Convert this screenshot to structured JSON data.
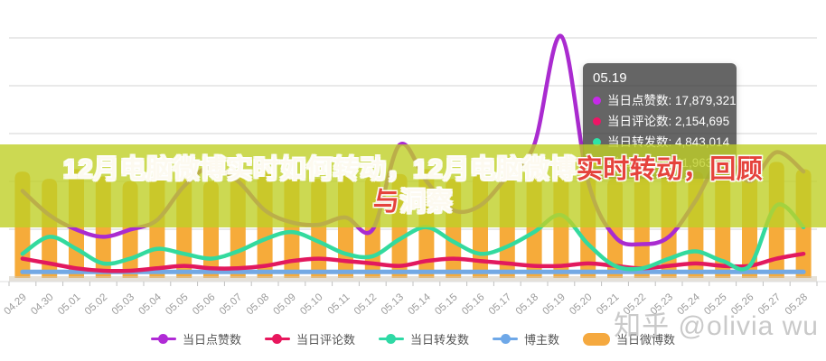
{
  "title_overlay": {
    "text": "12月电脑微博实时如何转动，12月电脑微博实时转动，回顾与洞察",
    "segments": [
      {
        "text": "12月电脑微博实时如何转动，12月电脑微博",
        "color": "#fdfaf0"
      },
      {
        "text": "实时转动，回顾与",
        "color": "#e5433c"
      },
      {
        "text": "洞察",
        "color": "#fdfaf0"
      }
    ],
    "band_color": "#bfcf27",
    "band_opacity": 0.8
  },
  "tooltip": {
    "date": "05.19",
    "rows": [
      {
        "label": "当日点赞数",
        "value": "17,879,321",
        "color": "#c62ae8"
      },
      {
        "label": "当日评论数",
        "value": "2,154,695",
        "color": "#ee1566"
      },
      {
        "label": "当日转发数",
        "value": "4,843,014",
        "color": "#2de4a7"
      },
      {
        "label": "当日微博数",
        "value": "41,963",
        "color": "#f5a93f"
      }
    ]
  },
  "legend": [
    {
      "label": "当日点赞数",
      "color": "#b02bd6",
      "type": "line"
    },
    {
      "label": "当日评论数",
      "color": "#e8175d",
      "type": "line"
    },
    {
      "label": "当日转发数",
      "color": "#2fd9a5",
      "type": "line"
    },
    {
      "label": "博主数",
      "color": "#6ea8e8",
      "type": "line"
    },
    {
      "label": "当日微博数",
      "color": "#f5a93f",
      "type": "bar"
    }
  ],
  "watermark": "知乎 @olivia wu",
  "chart_data": {
    "type": "mixed bar+line",
    "note": "No y-axis labels visible in screenshot; series values are estimated as percent of plot height (0-100). Tooltip gives real values for 05.19.",
    "categories": [
      "04.29",
      "04.30",
      "05.01",
      "05.02",
      "05.03",
      "05.04",
      "05.05",
      "05.06",
      "05.07",
      "05.08",
      "05.09",
      "05.10",
      "05.11",
      "05.12",
      "05.13",
      "05.14",
      "05.15",
      "05.16",
      "05.17",
      "05.18",
      "05.19",
      "05.20",
      "05.21",
      "05.22",
      "05.23",
      "05.24",
      "05.25",
      "05.26",
      "05.27",
      "05.28"
    ],
    "ylim": [
      0,
      100
    ],
    "grid": true,
    "legend_position": "bottom",
    "series": [
      {
        "name": "当日微博数",
        "type": "bar",
        "color": "#f6ab3a",
        "values": [
          44,
          41,
          45,
          42,
          40,
          44,
          42,
          40,
          42,
          45,
          43,
          41,
          44,
          42,
          43,
          45,
          41,
          43,
          42,
          44,
          48,
          43,
          41,
          42,
          45,
          44,
          46,
          42,
          48,
          45
        ]
      },
      {
        "name": "博主数",
        "type": "line",
        "color": "#73a9e4",
        "values": [
          2.5,
          2.5,
          2.5,
          2.5,
          2.5,
          2.5,
          2.5,
          2.5,
          2.5,
          2.5,
          2.5,
          2.5,
          2.5,
          2.5,
          2.5,
          2.5,
          2.5,
          2.5,
          2.5,
          2.5,
          2.5,
          2.5,
          2.5,
          2.5,
          2.5,
          2.5,
          2.5,
          2.5,
          2.5,
          2.5
        ]
      },
      {
        "name": "当日评论数",
        "type": "line",
        "color": "#e2195e",
        "values": [
          8,
          6,
          4,
          3,
          3,
          4,
          5,
          4,
          4,
          5,
          7,
          8,
          7,
          6,
          5,
          7,
          8,
          7,
          6,
          5,
          5,
          6,
          5,
          4,
          5,
          6,
          5,
          5,
          8,
          10
        ]
      },
      {
        "name": "当日转发数",
        "type": "line",
        "color": "#33da9e",
        "values": [
          10,
          17,
          12,
          6,
          8,
          12,
          10,
          8,
          11,
          16,
          19,
          15,
          10,
          9,
          16,
          21,
          15,
          10,
          13,
          19,
          26,
          14,
          5,
          4,
          8,
          11,
          7,
          5,
          30,
          21
        ]
      },
      {
        "name": "当日点赞数",
        "type": "line",
        "color": "#aa2bd0",
        "values": [
          36,
          26,
          20,
          17,
          20,
          24,
          38,
          46,
          40,
          28,
          23,
          22,
          25,
          20,
          55,
          40,
          28,
          30,
          42,
          55,
          100,
          40,
          17,
          14,
          17,
          32,
          50,
          40,
          52,
          44
        ]
      }
    ]
  }
}
